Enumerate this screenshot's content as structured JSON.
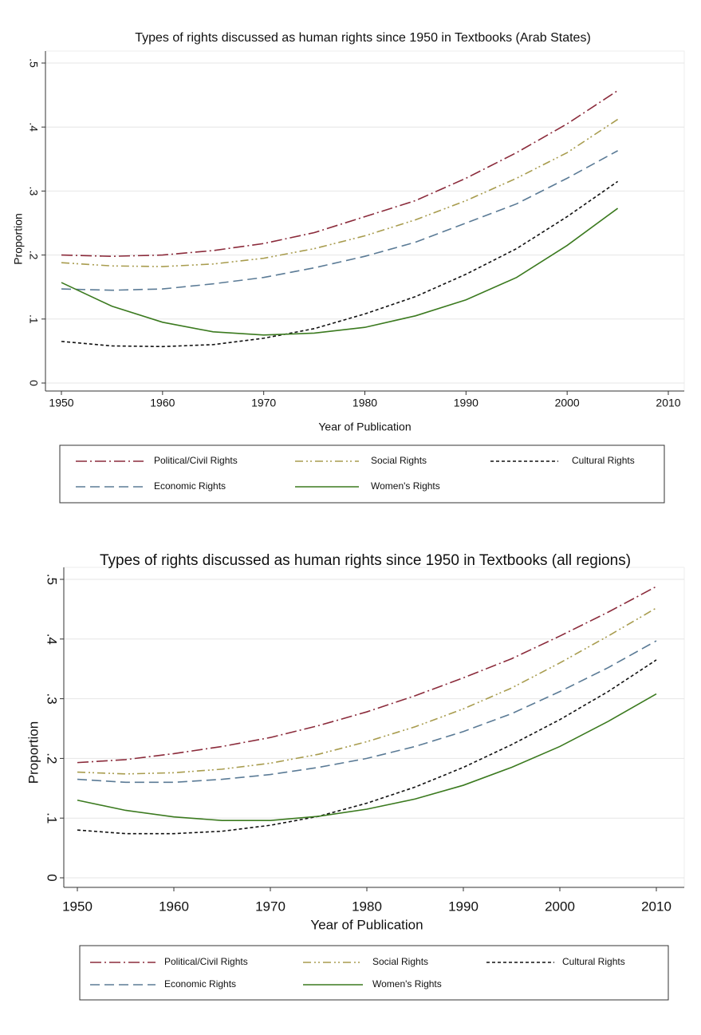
{
  "chart_data": [
    {
      "type": "line",
      "title": "Types of rights discussed as human rights since 1950 in Textbooks (Arab States)",
      "x_label": "Year of Publication",
      "y_label": "Proportion",
      "x": [
        1950,
        1955,
        1960,
        1965,
        1970,
        1975,
        1980,
        1985,
        1990,
        1995,
        2000,
        2005
      ],
      "xlim": [
        1950,
        2010
      ],
      "xticks": [
        1950,
        1960,
        1970,
        1980,
        1990,
        2000,
        2010
      ],
      "ylim": [
        0,
        0.5
      ],
      "yticks": [
        0,
        {
          "value": 0.1,
          "label": ".1"
        },
        {
          "value": 0.2,
          "label": ".2"
        },
        {
          "value": 0.3,
          "label": ".3"
        },
        {
          "value": 0.4,
          "label": ".4"
        },
        {
          "value": 0.5,
          "label": ".5"
        }
      ],
      "grid": true,
      "series": [
        {
          "name": "Political/Civil Rights",
          "color": "#8b2b3b",
          "values": [
            0.2,
            0.198,
            0.2,
            0.207,
            0.218,
            0.235,
            0.26,
            0.285,
            0.32,
            0.36,
            0.405,
            0.457
          ]
        },
        {
          "name": "Social Rights",
          "color": "#a89c4e",
          "values": [
            0.188,
            0.183,
            0.182,
            0.186,
            0.195,
            0.21,
            0.23,
            0.255,
            0.285,
            0.32,
            0.36,
            0.412
          ]
        },
        {
          "name": "Cultural Rights",
          "color": "#111111",
          "values": [
            0.065,
            0.058,
            0.057,
            0.06,
            0.07,
            0.085,
            0.108,
            0.135,
            0.17,
            0.21,
            0.26,
            0.315
          ]
        },
        {
          "name": "Economic Rights",
          "color": "#5b7b96",
          "values": [
            0.147,
            0.145,
            0.147,
            0.155,
            0.165,
            0.18,
            0.198,
            0.22,
            0.25,
            0.28,
            0.32,
            0.363
          ]
        },
        {
          "name": "Women's Rights",
          "color": "#3b7a1f",
          "values": [
            0.157,
            0.12,
            0.095,
            0.08,
            0.075,
            0.078,
            0.087,
            0.105,
            0.13,
            0.165,
            0.215,
            0.273
          ]
        }
      ]
    },
    {
      "type": "line",
      "title": "Types of rights discussed as human rights since 1950 in Textbooks (all regions)",
      "x_label": "Year of Publication",
      "y_label": "Proportion",
      "x": [
        1950,
        1955,
        1960,
        1965,
        1970,
        1975,
        1980,
        1985,
        1990,
        1995,
        2000,
        2005,
        2010
      ],
      "xlim": [
        1950,
        2010
      ],
      "xticks": [
        1950,
        1960,
        1970,
        1980,
        1990,
        2000,
        2010
      ],
      "ylim": [
        0,
        0.5
      ],
      "yticks": [
        0,
        {
          "value": 0.1,
          "label": ".1"
        },
        {
          "value": 0.2,
          "label": ".2"
        },
        {
          "value": 0.3,
          "label": ".3"
        },
        {
          "value": 0.4,
          "label": ".4"
        },
        {
          "value": 0.5,
          "label": ".5"
        }
      ],
      "grid": true,
      "series": [
        {
          "name": "Political/Civil Rights",
          "color": "#8b2b3b",
          "values": [
            0.193,
            0.198,
            0.208,
            0.22,
            0.235,
            0.255,
            0.278,
            0.305,
            0.335,
            0.367,
            0.405,
            0.445,
            0.488
          ]
        },
        {
          "name": "Social Rights",
          "color": "#a89c4e",
          "values": [
            0.177,
            0.174,
            0.176,
            0.182,
            0.192,
            0.207,
            0.228,
            0.253,
            0.283,
            0.318,
            0.36,
            0.405,
            0.452
          ]
        },
        {
          "name": "Cultural Rights",
          "color": "#111111",
          "values": [
            0.08,
            0.074,
            0.074,
            0.078,
            0.088,
            0.103,
            0.125,
            0.152,
            0.185,
            0.223,
            0.265,
            0.312,
            0.365
          ]
        },
        {
          "name": "Economic Rights",
          "color": "#5b7b96",
          "values": [
            0.165,
            0.16,
            0.16,
            0.165,
            0.173,
            0.185,
            0.2,
            0.22,
            0.245,
            0.275,
            0.312,
            0.352,
            0.397
          ]
        },
        {
          "name": "Women's Rights",
          "color": "#3b7a1f",
          "values": [
            0.13,
            0.113,
            0.102,
            0.096,
            0.096,
            0.103,
            0.115,
            0.132,
            0.155,
            0.185,
            0.22,
            0.262,
            0.308
          ]
        }
      ]
    }
  ]
}
